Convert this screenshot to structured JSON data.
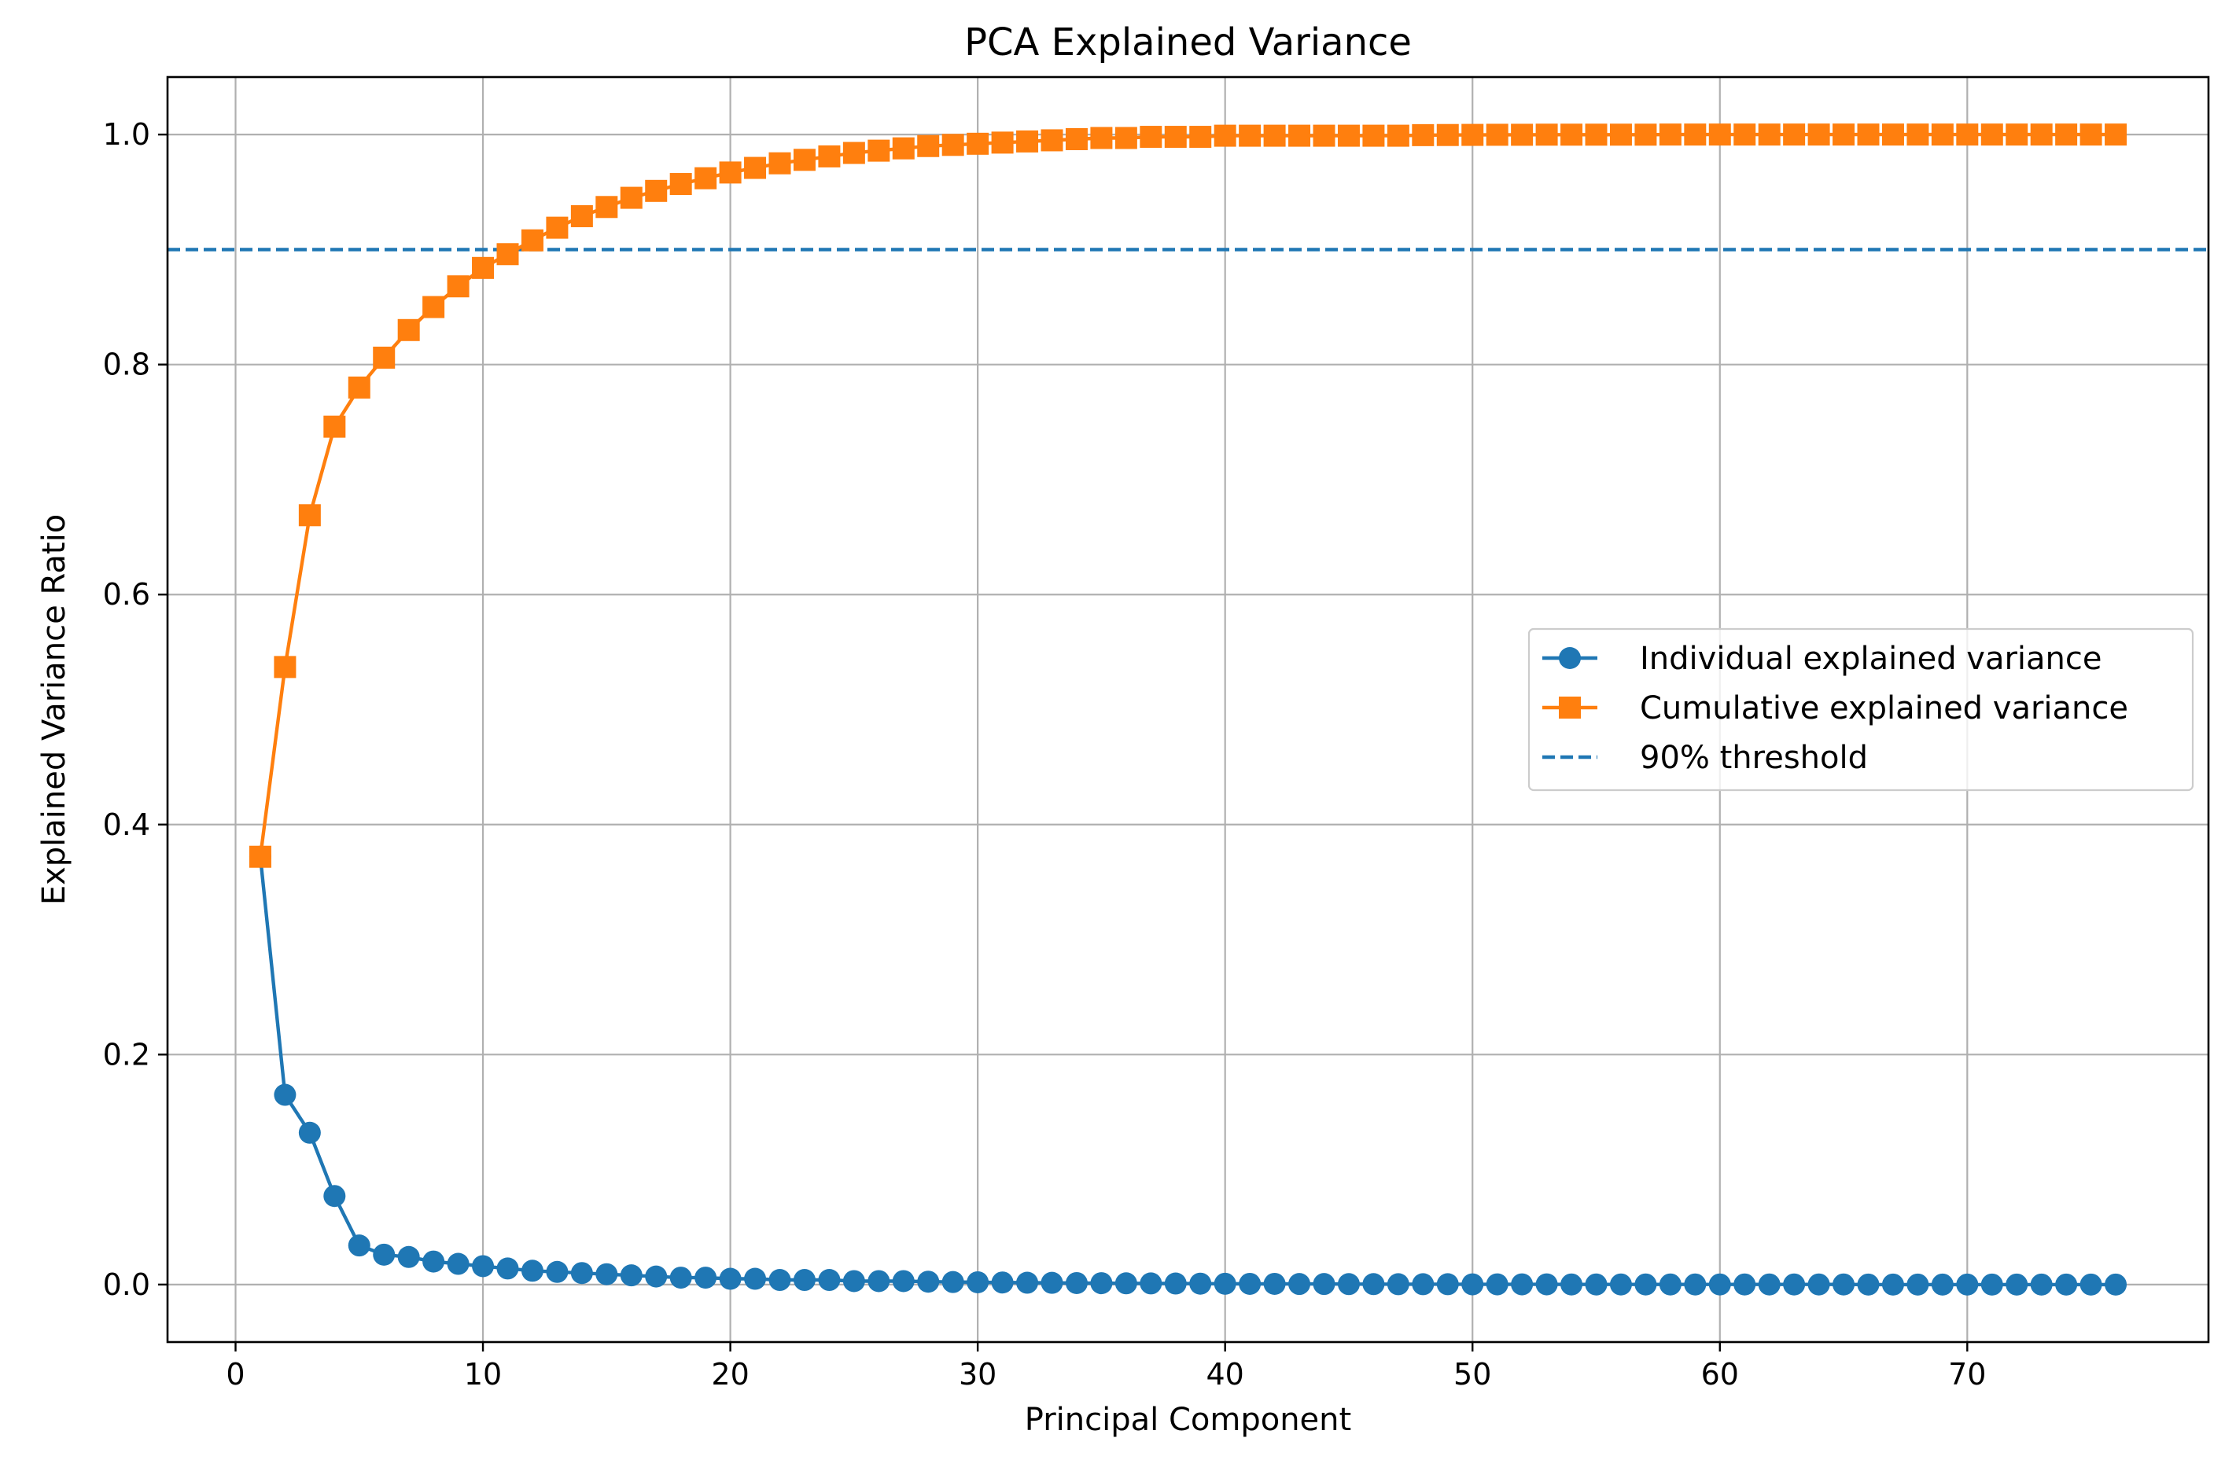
{
  "chart_data": {
    "type": "line",
    "title": "PCA Explained Variance",
    "xlabel": "Principal Component",
    "ylabel": "Explained Variance Ratio",
    "xlim": [
      -2.75,
      79.75
    ],
    "ylim": [
      -0.05,
      1.05
    ],
    "x_ticks": [
      0,
      10,
      20,
      30,
      40,
      50,
      60,
      70
    ],
    "y_ticks": [
      0.0,
      0.2,
      0.4,
      0.6,
      0.8,
      1.0
    ],
    "x_tick_labels": [
      "0",
      "10",
      "20",
      "30",
      "40",
      "50",
      "60",
      "70"
    ],
    "y_tick_labels": [
      "0.0",
      "0.2",
      "0.4",
      "0.6",
      "0.8",
      "1.0"
    ],
    "grid": true,
    "legend_position": "center-right",
    "x": [
      1,
      2,
      3,
      4,
      5,
      6,
      7,
      8,
      9,
      10,
      11,
      12,
      13,
      14,
      15,
      16,
      17,
      18,
      19,
      20,
      21,
      22,
      23,
      24,
      25,
      26,
      27,
      28,
      29,
      30,
      31,
      32,
      33,
      34,
      35,
      36,
      37,
      38,
      39,
      40,
      41,
      42,
      43,
      44,
      45,
      46,
      47,
      48,
      49,
      50,
      51,
      52,
      53,
      54,
      55,
      56,
      57,
      58,
      59,
      60,
      61,
      62,
      63,
      64,
      65,
      66,
      67,
      68,
      69,
      70,
      71,
      72,
      73,
      74,
      75,
      76
    ],
    "series": [
      {
        "name": "Individual explained variance",
        "color": "#1f77b4",
        "marker": "circle",
        "values": [
          0.372,
          0.165,
          0.132,
          0.077,
          0.034,
          0.026,
          0.024,
          0.02,
          0.018,
          0.016,
          0.014,
          0.012,
          0.011,
          0.01,
          0.009,
          0.008,
          0.007,
          0.006,
          0.006,
          0.005,
          0.005,
          0.004,
          0.004,
          0.004,
          0.003,
          0.003,
          0.003,
          0.0025,
          0.0022,
          0.002,
          0.0018,
          0.0016,
          0.0015,
          0.0013,
          0.0012,
          0.0011,
          0.001,
          0.0009,
          0.0008,
          0.0007,
          0.0006,
          0.0006,
          0.0005,
          0.0005,
          0.0004,
          0.0004,
          0.0003,
          0.0003,
          0.0003,
          0.0002,
          0.0002,
          0.0002,
          0.0002,
          0.0001,
          0.0001,
          0.0001,
          0.0001,
          0.0001,
          0.0001,
          0.0001,
          0.0001,
          0.0001,
          0.0001,
          0.0001,
          0.0001,
          0.0,
          0.0,
          0.0,
          0.0,
          0.0,
          0.0,
          0.0,
          0.0,
          0.0,
          0.0,
          0.0
        ]
      },
      {
        "name": "Cumulative explained variance",
        "color": "#ff7f0e",
        "marker": "square",
        "values": [
          0.372,
          0.537,
          0.669,
          0.746,
          0.78,
          0.806,
          0.83,
          0.85,
          0.868,
          0.884,
          0.896,
          0.908,
          0.919,
          0.929,
          0.937,
          0.945,
          0.951,
          0.957,
          0.962,
          0.967,
          0.971,
          0.975,
          0.978,
          0.981,
          0.984,
          0.986,
          0.988,
          0.99,
          0.991,
          0.992,
          0.993,
          0.994,
          0.995,
          0.996,
          0.997,
          0.997,
          0.998,
          0.998,
          0.998,
          0.999,
          0.999,
          0.999,
          0.999,
          0.999,
          0.999,
          0.999,
          0.999,
          0.9995,
          0.9996,
          0.9997,
          0.9998,
          0.9998,
          0.9999,
          0.9999,
          0.9999,
          0.9999,
          0.9999,
          1.0,
          1.0,
          1.0,
          1.0,
          1.0,
          1.0,
          1.0,
          1.0,
          1.0,
          1.0,
          1.0,
          1.0,
          1.0,
          1.0,
          1.0,
          1.0,
          1.0,
          1.0,
          1.0
        ]
      }
    ],
    "threshold": {
      "name": "90% threshold",
      "value": 0.9,
      "color": "#1f77b4",
      "style": "dashed"
    }
  }
}
